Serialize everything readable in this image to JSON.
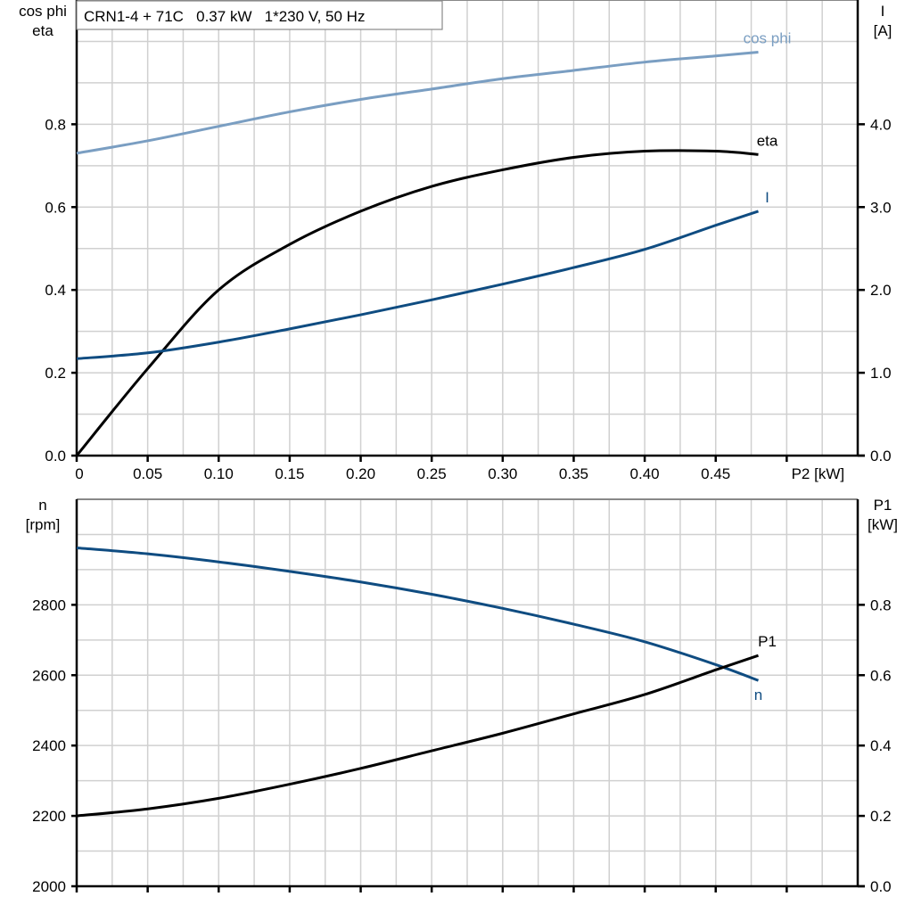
{
  "chart_data": [
    {
      "type": "line",
      "title": "CRN1-4 + 71C   0.37 kW   1*230 V, 50 Hz",
      "xlabel": "P2 [kW]",
      "ylabel_left": [
        "cos phi",
        "eta"
      ],
      "ylabel_right": [
        "I",
        "[A]"
      ],
      "xlim": [
        0,
        0.55
      ],
      "ylim_left": [
        0,
        1.1
      ],
      "ylim_right": [
        0,
        5.5
      ],
      "grid": true,
      "x_ticks": [
        "0",
        "0.05",
        "0.10",
        "0.15",
        "0.20",
        "0.25",
        "0.30",
        "0.35",
        "0.40",
        "0.45"
      ],
      "y_ticks_left": [
        "0.0",
        "0.2",
        "0.4",
        "0.6",
        "0.8"
      ],
      "y_ticks_right": [
        "0.0",
        "1.0",
        "2.0",
        "3.0",
        "4.0"
      ],
      "x": [
        0,
        0.05,
        0.1,
        0.15,
        0.2,
        0.25,
        0.3,
        0.35,
        0.4,
        0.45,
        0.48
      ],
      "series": [
        {
          "name": "cos phi",
          "axis": "left",
          "color": "#7a9ec2",
          "values": [
            0.73,
            0.76,
            0.795,
            0.83,
            0.86,
            0.885,
            0.91,
            0.93,
            0.95,
            0.965,
            0.974
          ]
        },
        {
          "name": "eta",
          "axis": "left",
          "color": "#000000",
          "values": [
            0.0,
            0.21,
            0.4,
            0.51,
            0.59,
            0.65,
            0.69,
            0.72,
            0.735,
            0.735,
            0.727
          ]
        },
        {
          "name": "I",
          "axis": "right",
          "color": "#0f4c81",
          "values": [
            1.17,
            1.24,
            1.37,
            1.53,
            1.7,
            1.88,
            2.07,
            2.27,
            2.49,
            2.78,
            2.95
          ]
        }
      ]
    },
    {
      "type": "line",
      "ylabel_left": [
        "n",
        "[rpm]"
      ],
      "ylabel_right": [
        "P1",
        "[kW]"
      ],
      "xlim": [
        0,
        0.55
      ],
      "ylim_left": [
        2000,
        3100
      ],
      "ylim_right": [
        0,
        1.1
      ],
      "grid": true,
      "y_ticks_left": [
        "2000",
        "2200",
        "2400",
        "2600",
        "2800"
      ],
      "y_ticks_right": [
        "0.0",
        "0.2",
        "0.4",
        "0.6",
        "0.8"
      ],
      "x": [
        0,
        0.05,
        0.1,
        0.15,
        0.2,
        0.25,
        0.3,
        0.35,
        0.4,
        0.45,
        0.48
      ],
      "series": [
        {
          "name": "n",
          "axis": "left",
          "color": "#0f4c81",
          "values": [
            2962,
            2945,
            2922,
            2895,
            2865,
            2830,
            2790,
            2745,
            2695,
            2630,
            2585
          ]
        },
        {
          "name": "P1",
          "axis": "right",
          "color": "#000000",
          "values": [
            0.2,
            0.22,
            0.25,
            0.29,
            0.335,
            0.385,
            0.435,
            0.49,
            0.545,
            0.615,
            0.656
          ]
        }
      ]
    }
  ]
}
